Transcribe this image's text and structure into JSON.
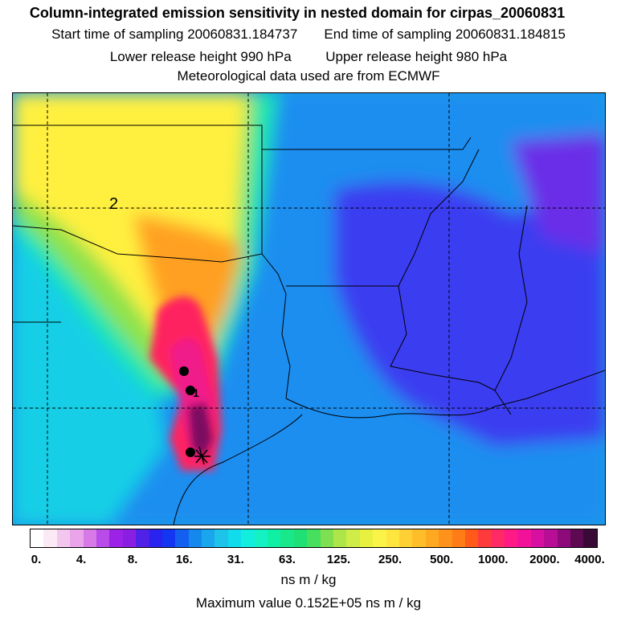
{
  "header": {
    "title": "Column-integrated emission sensitivity in nested domain for cirpas_20060831",
    "start_label": "Start time of sampling 20060831.184737",
    "end_label": "End time of sampling 20060831.184815",
    "lower_label": "Lower release height  990 hPa",
    "upper_label": "Upper release height  980 hPa",
    "met_label": "Meteorological data used are from ECMWF"
  },
  "map": {
    "labels": [
      {
        "text": "2"
      },
      {
        "text": "1"
      }
    ]
  },
  "colorbar": {
    "colors": [
      "#ffffff",
      "#fbe9f6",
      "#f3c6ee",
      "#eaa4ea",
      "#d77ae8",
      "#b94be8",
      "#9b22e6",
      "#8a1fe4",
      "#5022e8",
      "#2a22ee",
      "#1236f2",
      "#1360f0",
      "#1588ee",
      "#1aa6ec",
      "#1ec3ea",
      "#10dcee",
      "#12eede",
      "#14f2c4",
      "#10f0a4",
      "#18e88a",
      "#1ee074",
      "#46e05e",
      "#7ee050",
      "#aee64a",
      "#cfec48",
      "#e8f040",
      "#faf44a",
      "#ffe63e",
      "#ffd034",
      "#ffbd2a",
      "#ffa822",
      "#ff921a",
      "#ff7c16",
      "#ff5a1a",
      "#ff3a3c",
      "#ff2a66",
      "#ff1a88",
      "#f2129a",
      "#d810a2",
      "#b80e96",
      "#8c0a7a",
      "#5e0a52",
      "#3a0a36"
    ],
    "ticks": [
      "0.",
      "4.",
      "8.",
      "16.",
      "31.",
      "63.",
      "125.",
      "250.",
      "500.",
      "1000.",
      "2000.",
      "4000."
    ],
    "units": "ns m / kg",
    "max_label": "Maximum value  0.152E+05 ns m / kg"
  }
}
